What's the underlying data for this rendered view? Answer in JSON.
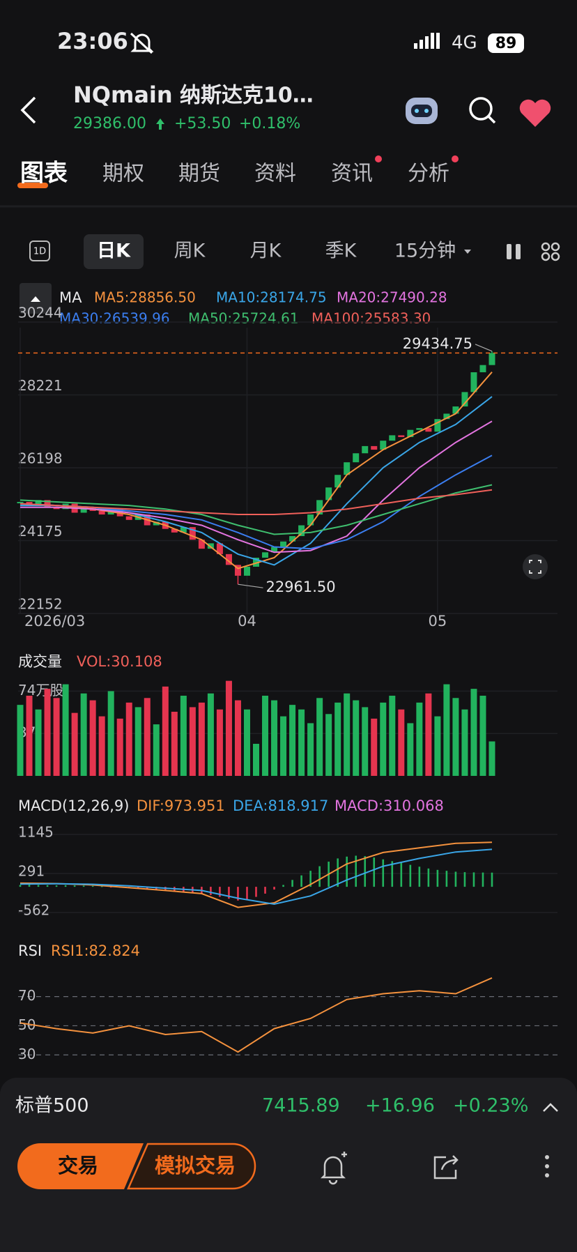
{
  "status_bar": {
    "time": "23:06",
    "network": "4G",
    "battery": "89"
  },
  "header": {
    "symbol": "NQmain",
    "name": "纳斯达克10…",
    "price": "29386.00",
    "change": "+53.50",
    "change_pct": "+0.18%"
  },
  "tabs": [
    "图表",
    "期权",
    "期货",
    "资料",
    "资讯",
    "分析"
  ],
  "selected_tab": 0,
  "period_icon": "1D",
  "periods": [
    "日K",
    "周K",
    "月K",
    "季K",
    "15分钟"
  ],
  "selected_period": 0,
  "chart_data": [
    {
      "type": "candlestick",
      "indicator": "MA",
      "up_color": "#22b35e",
      "down_color": "#e5354f",
      "close": [
        25250,
        25150,
        25300,
        25100,
        25050,
        25200,
        24950,
        25100,
        25000,
        24900,
        25050,
        24850,
        24750,
        24900,
        24600,
        24700,
        24500,
        24400,
        24550,
        24200,
        23950,
        24100,
        23800,
        23500,
        23200,
        23450,
        23700,
        23850,
        24000,
        24150,
        24300,
        24600,
        24900,
        25300,
        25650,
        26000,
        26350,
        26600,
        26800,
        26700,
        26950,
        27100,
        27050,
        27250,
        27300,
        27200,
        27550,
        27700,
        27900,
        28300,
        28850,
        29050,
        29386
      ],
      "xlim": [
        0,
        52
      ],
      "xticks": [
        {
          "value": 0,
          "label": "2026/03"
        },
        {
          "value": 25,
          "label": "04"
        },
        {
          "value": 46,
          "label": "05"
        }
      ],
      "ylim": [
        22152,
        30244
      ],
      "yticks": [
        30244,
        28221,
        26198,
        24175,
        22152
      ],
      "ma_x": [
        0,
        4,
        8,
        12,
        16,
        20,
        24,
        28,
        32,
        36,
        40,
        44,
        48,
        52
      ],
      "ma": [
        {
          "label": "MA5:28856.50",
          "color": "#f5923e",
          "values": [
            25200,
            25150,
            25050,
            24900,
            24600,
            24200,
            23400,
            23700,
            24600,
            26000,
            26700,
            27200,
            27700,
            28856.5
          ]
        },
        {
          "label": "MA10:28174.75",
          "color": "#3aa6e8",
          "values": [
            25150,
            25150,
            25100,
            24950,
            24700,
            24400,
            23800,
            23500,
            24100,
            25200,
            26200,
            26900,
            27400,
            28174.75
          ]
        },
        {
          "label": "MA20:27490.28",
          "color": "#e374e0",
          "values": [
            25100,
            25100,
            25050,
            24950,
            24800,
            24600,
            24200,
            23850,
            23900,
            24300,
            25300,
            26200,
            26900,
            27490.28
          ]
        },
        {
          "label": "MA30:26539.96",
          "color": "#3b7ef0",
          "values": [
            25200,
            25150,
            25100,
            25000,
            24900,
            24750,
            24400,
            24000,
            23950,
            24200,
            24700,
            25400,
            26000,
            26539.96
          ]
        },
        {
          "label": "MA50:25724.61",
          "color": "#3fbf6f",
          "values": [
            25300,
            25250,
            25200,
            25150,
            25050,
            24900,
            24600,
            24350,
            24400,
            24600,
            24900,
            25200,
            25500,
            25724.61
          ]
        },
        {
          "label": "MA100:25583.30",
          "color": "#f0605a",
          "values": [
            25200,
            25150,
            25100,
            25050,
            25000,
            24950,
            24900,
            24900,
            24950,
            25050,
            25200,
            25350,
            25450,
            25583.3
          ]
        }
      ],
      "annotations": [
        {
          "value": 29434.75,
          "label": "29434.75",
          "x": 52
        },
        {
          "value": 22961.5,
          "label": "22961.50",
          "x": 24
        }
      ]
    },
    {
      "type": "bar",
      "title": "成交量",
      "legend": "VOL:30.108",
      "values": [
        62,
        70,
        58,
        76,
        68,
        80,
        55,
        72,
        66,
        52,
        74,
        50,
        64,
        60,
        68,
        45,
        78,
        56,
        70,
        60,
        64,
        72,
        58,
        83,
        66,
        58,
        28,
        70,
        66,
        52,
        62,
        58,
        46,
        68,
        54,
        64,
        72,
        66,
        60,
        50,
        64,
        70,
        58,
        46,
        64,
        72,
        52,
        80,
        68,
        58,
        76,
        70,
        30.108
      ],
      "ylim": [
        0,
        84
      ],
      "yticks": [
        {
          "value": 74,
          "label": "74万股"
        },
        37
      ]
    },
    {
      "type": "macd",
      "title": "MACD(12,26,9)",
      "legend": [
        "DIF:973.951",
        "DEA:818.917",
        "MACD:310.068"
      ],
      "histogram": [
        40,
        45,
        40,
        35,
        30,
        35,
        30,
        25,
        20,
        10,
        -10,
        -20,
        -30,
        -40,
        -50,
        -60,
        -80,
        -100,
        -120,
        -140,
        -160,
        -180,
        -220,
        -260,
        -300,
        -280,
        -220,
        -150,
        -60,
        40,
        150,
        250,
        350,
        450,
        550,
        620,
        660,
        680,
        670,
        640,
        600,
        560,
        520,
        480,
        440,
        400,
        370,
        350,
        330,
        320,
        315,
        312,
        310.068
      ],
      "x": [
        0,
        4,
        8,
        12,
        16,
        20,
        24,
        28,
        32,
        36,
        40,
        44,
        48,
        52
      ],
      "dif": [
        80,
        70,
        40,
        -20,
        -80,
        -150,
        -450,
        -350,
        50,
        500,
        750,
        850,
        950,
        973.951
      ],
      "dea": [
        60,
        65,
        55,
        20,
        -30,
        -80,
        -250,
        -380,
        -200,
        150,
        450,
        620,
        760,
        818.917
      ],
      "colors": [
        "#f5923e",
        "#3aa6e8",
        "#e374e0"
      ],
      "ylim": [
        -730,
        1404
      ],
      "yticks": [
        1145,
        291,
        -562
      ]
    },
    {
      "type": "line",
      "title": "RSI",
      "legend": "RSI1:82.824",
      "color": "#f5923e",
      "x": [
        0,
        4,
        8,
        12,
        16,
        20,
        24,
        28,
        32,
        36,
        40,
        44,
        48,
        52
      ],
      "values": [
        52,
        48,
        45,
        50,
        44,
        46,
        32,
        48,
        55,
        68,
        72,
        74,
        72,
        82.824
      ],
      "ylim": [
        22,
        88
      ],
      "yticks": [
        70,
        50,
        30
      ]
    }
  ],
  "bottom_quote": {
    "name": "标普500",
    "price": "7415.89",
    "change": "+16.96",
    "change_pct": "+0.23%"
  },
  "actions": {
    "trade": "交易",
    "paper_trade": "模拟交易"
  }
}
